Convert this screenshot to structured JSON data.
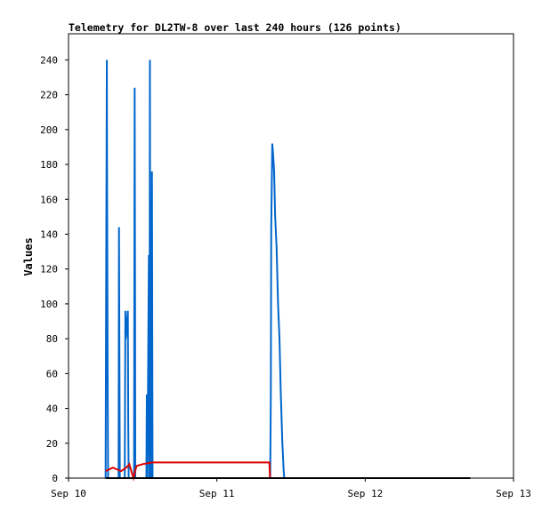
{
  "chart_data": {
    "type": "line",
    "title": "Telemetry for DL2TW-8 over last 240 hours (126 points)",
    "xlabel": "",
    "ylabel": "Values",
    "x_axis": {
      "type": "time",
      "range": [
        "2019-09-10T00:00",
        "2019-09-13T00:00"
      ],
      "ticks": [
        {
          "x": "2019-09-10T00:00",
          "label": "Sep 10"
        },
        {
          "x": "2019-09-11T00:00",
          "label": "Sep 11"
        },
        {
          "x": "2019-09-12T00:00",
          "label": "Sep 12"
        },
        {
          "x": "2019-09-13T00:00",
          "label": "Sep 13"
        }
      ]
    },
    "ylim": [
      0,
      255
    ],
    "yticks": [
      0,
      20,
      40,
      60,
      80,
      100,
      120,
      140,
      160,
      180,
      200,
      220,
      240
    ],
    "grid": false,
    "legend": "none",
    "series": [
      {
        "color": "#0066cc",
        "points": [
          [
            "2019-09-10T06:00",
            0
          ],
          [
            "2019-09-10T06:12",
            240
          ],
          [
            "2019-09-10T06:14",
            180
          ],
          [
            "2019-09-10T06:20",
            60
          ],
          [
            "2019-09-10T06:24",
            0
          ],
          [
            "2019-09-10T08:06",
            0
          ],
          [
            "2019-09-10T08:10",
            144
          ],
          [
            "2019-09-10T08:14",
            72
          ],
          [
            "2019-09-10T08:18",
            0
          ],
          [
            "2019-09-10T09:06",
            0
          ],
          [
            "2019-09-10T09:12",
            96
          ],
          [
            "2019-09-10T09:16",
            80
          ],
          [
            "2019-09-10T09:36",
            96
          ],
          [
            "2019-09-10T09:40",
            30
          ],
          [
            "2019-09-10T09:44",
            0
          ],
          [
            "2019-09-10T10:36",
            0
          ],
          [
            "2019-09-10T10:42",
            224
          ],
          [
            "2019-09-10T10:46",
            100
          ],
          [
            "2019-09-10T10:48",
            0
          ],
          [
            "2019-09-10T12:36",
            0
          ],
          [
            "2019-09-10T12:40",
            48
          ],
          [
            "2019-09-10T12:46",
            0
          ],
          [
            "2019-09-10T13:00",
            128
          ],
          [
            "2019-09-10T13:06",
            0
          ],
          [
            "2019-09-10T13:10",
            240
          ],
          [
            "2019-09-10T13:14",
            0
          ],
          [
            "2019-09-10T13:18",
            160
          ],
          [
            "2019-09-10T13:22",
            0
          ],
          [
            "2019-09-10T13:30",
            176
          ],
          [
            "2019-09-10T13:36",
            0
          ],
          [
            "2019-09-11T08:38",
            0
          ],
          [
            "2019-09-11T08:44",
            48
          ],
          [
            "2019-09-11T08:48",
            144
          ],
          [
            "2019-09-11T08:58",
            192
          ],
          [
            "2019-09-11T09:06",
            186
          ],
          [
            "2019-09-11T09:16",
            176
          ],
          [
            "2019-09-11T09:26",
            150
          ],
          [
            "2019-09-11T09:40",
            132
          ],
          [
            "2019-09-11T09:54",
            100
          ],
          [
            "2019-09-11T10:08",
            80
          ],
          [
            "2019-09-11T10:20",
            50
          ],
          [
            "2019-09-11T10:36",
            20
          ],
          [
            "2019-09-11T10:48",
            5
          ],
          [
            "2019-09-11T10:54",
            0
          ],
          [
            "2019-09-12T17:00",
            0
          ]
        ]
      },
      {
        "color": "#dd0000",
        "points": [
          [
            "2019-09-10T06:00",
            4
          ],
          [
            "2019-09-10T07:10",
            6
          ],
          [
            "2019-09-10T08:30",
            4
          ],
          [
            "2019-09-10T09:20",
            6
          ],
          [
            "2019-09-10T09:50",
            8
          ],
          [
            "2019-09-10T10:30",
            0
          ],
          [
            "2019-09-10T11:00",
            7
          ],
          [
            "2019-09-10T12:00",
            8
          ],
          [
            "2019-09-10T13:30",
            9
          ],
          [
            "2019-09-11T08:30",
            9
          ],
          [
            "2019-09-11T08:36",
            0
          ],
          [
            "2019-09-12T17:00",
            0
          ]
        ]
      },
      {
        "color": "#000000",
        "points": [
          [
            "2019-09-10T06:00",
            0
          ],
          [
            "2019-09-12T17:00",
            0
          ]
        ]
      }
    ]
  }
}
